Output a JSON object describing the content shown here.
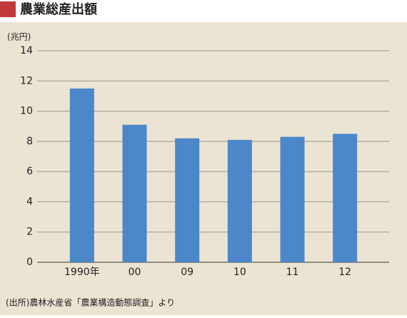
{
  "chart_data": {
    "type": "bar",
    "title": "農業総産出額",
    "y_label": "(兆円)",
    "categories": [
      "1990年",
      "00",
      "09",
      "10",
      "11",
      "12"
    ],
    "values": [
      11.5,
      9.1,
      8.2,
      8.1,
      8.3,
      8.5
    ],
    "color": "#4b87c9",
    "ylim": [
      0,
      14
    ],
    "yticks": [
      0,
      2,
      4,
      6,
      8,
      10,
      12,
      14
    ],
    "grid": true,
    "source": "(出所)農林水産省「農業構造動態調査」より"
  }
}
